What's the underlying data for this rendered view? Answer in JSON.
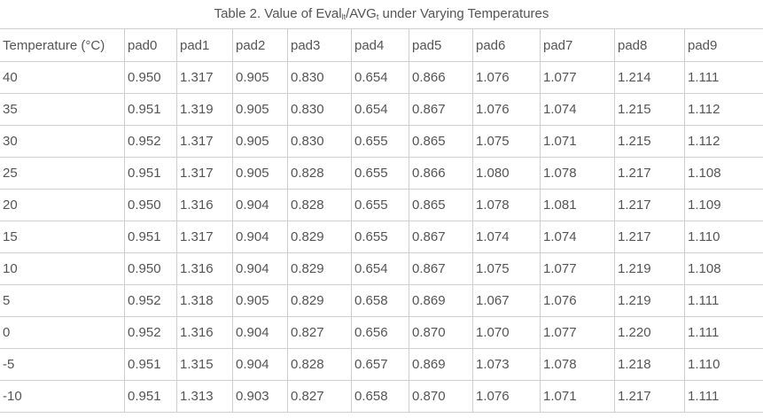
{
  "caption": {
    "prefix": "Table 2. Value of Eval",
    "sub1": "lt",
    "middle": "/AVG",
    "sub2": "t",
    "suffix": " under Varying Temperatures"
  },
  "table": {
    "headers": [
      "Temperature (°C)",
      "pad0",
      "pad1",
      "pad2",
      "pad3",
      "pad4",
      "pad5",
      "pad6",
      "pad7",
      "pad8",
      "pad9"
    ],
    "rows": [
      [
        "40",
        "0.950",
        "1.317",
        "0.905",
        "0.830",
        "0.654",
        "0.866",
        "1.076",
        "1.077",
        "1.214",
        "1.111"
      ],
      [
        "35",
        "0.951",
        "1.319",
        "0.905",
        "0.830",
        "0.654",
        "0.867",
        "1.076",
        "1.074",
        "1.215",
        "1.112"
      ],
      [
        "30",
        "0.952",
        "1.317",
        "0.905",
        "0.830",
        "0.655",
        "0.865",
        "1.075",
        "1.071",
        "1.215",
        "1.112"
      ],
      [
        "25",
        "0.951",
        "1.317",
        "0.905",
        "0.828",
        "0.655",
        "0.866",
        "1.080",
        "1.078",
        "1.217",
        "1.108"
      ],
      [
        "20",
        "0.950",
        "1.316",
        "0.904",
        "0.828",
        "0.655",
        "0.865",
        "1.078",
        "1.081",
        "1.217",
        "1.109"
      ],
      [
        "15",
        "0.951",
        "1.317",
        "0.904",
        "0.829",
        "0.655",
        "0.867",
        "1.074",
        "1.074",
        "1.217",
        "1.110"
      ],
      [
        "10",
        "0.950",
        "1.316",
        "0.904",
        "0.829",
        "0.654",
        "0.867",
        "1.075",
        "1.077",
        "1.219",
        "1.108"
      ],
      [
        "5",
        "0.952",
        "1.318",
        "0.905",
        "0.829",
        "0.658",
        "0.869",
        "1.067",
        "1.076",
        "1.219",
        "1.111"
      ],
      [
        "0",
        "0.952",
        "1.316",
        "0.904",
        "0.827",
        "0.656",
        "0.870",
        "1.070",
        "1.077",
        "1.220",
        "1.111"
      ],
      [
        "-5",
        "0.951",
        "1.315",
        "0.904",
        "0.828",
        "0.657",
        "0.869",
        "1.073",
        "1.078",
        "1.218",
        "1.110"
      ],
      [
        "-10",
        "0.951",
        "1.313",
        "0.903",
        "0.827",
        "0.658",
        "0.870",
        "1.076",
        "1.071",
        "1.217",
        "1.111"
      ]
    ]
  }
}
